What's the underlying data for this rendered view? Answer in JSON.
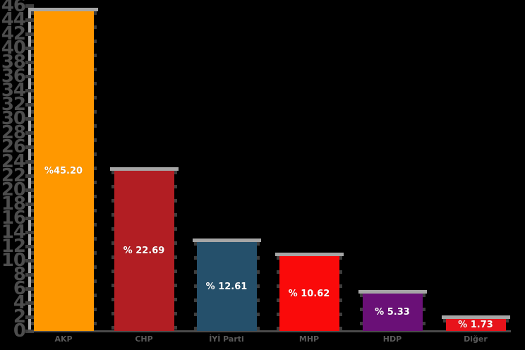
{
  "chart_data": {
    "type": "bar",
    "title": "",
    "xlabel": "",
    "ylabel": "",
    "categories": [
      "AKP",
      "CHP",
      "İYİ Parti",
      "MHP",
      "HDP",
      "Diğer"
    ],
    "values": [
      45.2,
      22.69,
      12.61,
      10.62,
      5.33,
      1.73
    ],
    "value_labels": [
      "%45.20",
      "% 22.69",
      "% 12.61",
      "% 10.62",
      "% 5.33",
      "% 1.73"
    ],
    "bar_colors": [
      "#FF9800",
      "#B21E23",
      "#25506B",
      "#FA0A0A",
      "#6A1077",
      "#E8131B"
    ],
    "ylim": [
      0,
      46
    ],
    "ytick_step": 2,
    "ytick_values": [
      0,
      2,
      4,
      6,
      8,
      10,
      12,
      14,
      16,
      18,
      20,
      22,
      24,
      26,
      28,
      30,
      32,
      34,
      36,
      38,
      40,
      42,
      44,
      46
    ],
    "grid": false,
    "legend_position": "none",
    "background_color": "#000000"
  },
  "colors": {
    "background": "#000000",
    "y_axis_line": "#A3A3A3",
    "x_axis_line": "#4A4A4A",
    "tick_dash": "#3F3F3F",
    "y_tick_label_text": "#4D4D4D",
    "x_category_label_text": "#5A5A5A",
    "bar_cap": "#A6A6A6",
    "value_label_text": "#FFFFFF"
  }
}
